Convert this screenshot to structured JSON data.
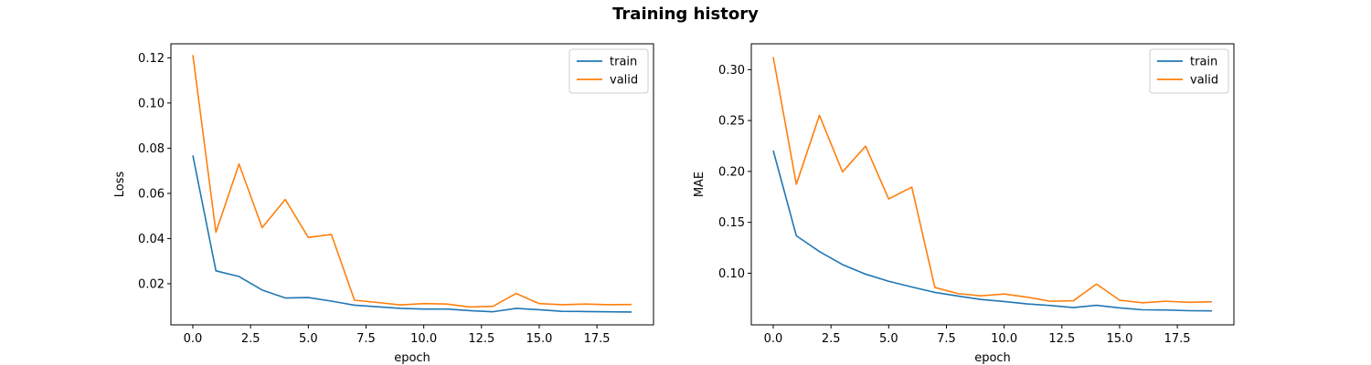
{
  "figure": {
    "title": "Training history"
  },
  "colors": {
    "train": "#1f77b4",
    "valid": "#ff7f0e"
  },
  "chart_data": [
    {
      "type": "line",
      "title": "",
      "xlabel": "epoch",
      "ylabel": "Loss",
      "xlim": [
        -0.95,
        19.95
      ],
      "ylim": [
        0.0018,
        0.1262
      ],
      "xticks": [
        0,
        2.5,
        5,
        7.5,
        10,
        12.5,
        15,
        17.5
      ],
      "xtick_labels": [
        "0.0",
        "2.5",
        "5.0",
        "7.5",
        "10.0",
        "12.5",
        "15.0",
        "17.5"
      ],
      "yticks": [
        0.02,
        0.04,
        0.06,
        0.08,
        0.1,
        0.12
      ],
      "ytick_labels": [
        "0.02",
        "0.04",
        "0.06",
        "0.08",
        "0.10",
        "0.12"
      ],
      "legend": "top-right",
      "grid": false,
      "x": [
        0,
        1,
        2,
        3,
        4,
        5,
        6,
        7,
        8,
        9,
        10,
        11,
        12,
        13,
        14,
        15,
        16,
        17,
        18,
        19
      ],
      "series": [
        {
          "name": "train",
          "values": [
            0.0768,
            0.0257,
            0.0232,
            0.0172,
            0.0137,
            0.0139,
            0.0123,
            0.0105,
            0.0098,
            0.0091,
            0.0088,
            0.0088,
            0.0081,
            0.0076,
            0.0091,
            0.0085,
            0.0078,
            0.0077,
            0.0076,
            0.0075
          ]
        },
        {
          "name": "valid",
          "values": [
            0.1212,
            0.0428,
            0.073,
            0.0448,
            0.0573,
            0.0405,
            0.0418,
            0.0127,
            0.0117,
            0.0106,
            0.0112,
            0.011,
            0.0097,
            0.01,
            0.0157,
            0.0112,
            0.0107,
            0.011,
            0.0107,
            0.0108
          ]
        }
      ]
    },
    {
      "type": "line",
      "title": "",
      "xlabel": "epoch",
      "ylabel": "MAE",
      "xlim": [
        -0.95,
        19.95
      ],
      "ylim": [
        0.0493,
        0.3254
      ],
      "xticks": [
        0,
        2.5,
        5,
        7.5,
        10,
        12.5,
        15,
        17.5
      ],
      "xtick_labels": [
        "0.0",
        "2.5",
        "5.0",
        "7.5",
        "10.0",
        "12.5",
        "15.0",
        "17.5"
      ],
      "yticks": [
        0.1,
        0.15,
        0.2,
        0.25,
        0.3
      ],
      "ytick_labels": [
        "0.10",
        "0.15",
        "0.20",
        "0.25",
        "0.30"
      ],
      "legend": "top-right",
      "grid": false,
      "x": [
        0,
        1,
        2,
        3,
        4,
        5,
        6,
        7,
        8,
        9,
        10,
        11,
        12,
        13,
        14,
        15,
        16,
        17,
        18,
        19
      ],
      "series": [
        {
          "name": "train",
          "values": [
            0.2205,
            0.1368,
            0.1213,
            0.1085,
            0.0991,
            0.0921,
            0.0865,
            0.0812,
            0.0776,
            0.0742,
            0.0722,
            0.0699,
            0.0683,
            0.0663,
            0.0685,
            0.0659,
            0.0641,
            0.0639,
            0.0632,
            0.063
          ]
        },
        {
          "name": "valid",
          "values": [
            0.3124,
            0.1874,
            0.2551,
            0.1995,
            0.2248,
            0.173,
            0.1846,
            0.086,
            0.08,
            0.0778,
            0.0796,
            0.0765,
            0.0725,
            0.073,
            0.0894,
            0.0735,
            0.071,
            0.0725,
            0.0714,
            0.072
          ]
        }
      ]
    }
  ]
}
